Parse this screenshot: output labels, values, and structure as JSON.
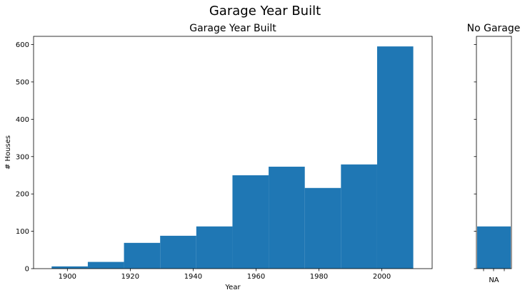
{
  "figure": {
    "title": "Garage Year Built"
  },
  "chart_data": [
    {
      "type": "bar",
      "title": "Garage Year Built",
      "xlabel": "Year",
      "ylabel": "# Houses",
      "xlim": [
        1889.25,
        2016.0
      ],
      "ylim": [
        0,
        622
      ],
      "xticks": [
        "1900",
        "1920",
        "1940",
        "1960",
        "1980",
        "2000"
      ],
      "yticks": [
        "0",
        "100",
        "200",
        "300",
        "400",
        "500",
        "600"
      ],
      "bins": [
        {
          "from": 1895.0,
          "to": 1906.5,
          "value": 6
        },
        {
          "from": 1906.5,
          "to": 1918.0,
          "value": 18
        },
        {
          "from": 1918.0,
          "to": 1929.5,
          "value": 69
        },
        {
          "from": 1929.5,
          "to": 1941.0,
          "value": 88
        },
        {
          "from": 1941.0,
          "to": 1952.5,
          "value": 113
        },
        {
          "from": 1952.5,
          "to": 1964.0,
          "value": 250
        },
        {
          "from": 1964.0,
          "to": 1975.5,
          "value": 273
        },
        {
          "from": 1975.5,
          "to": 1987.0,
          "value": 216
        },
        {
          "from": 1987.0,
          "to": 1998.5,
          "value": 279
        },
        {
          "from": 1998.5,
          "to": 2010.0,
          "value": 595
        }
      ],
      "color": "#1f77b4"
    },
    {
      "type": "bar",
      "title": "No Garage",
      "categories": [
        "NA"
      ],
      "values": [
        113
      ],
      "ylim": [
        0,
        622
      ],
      "color": "#1f77b4"
    }
  ]
}
